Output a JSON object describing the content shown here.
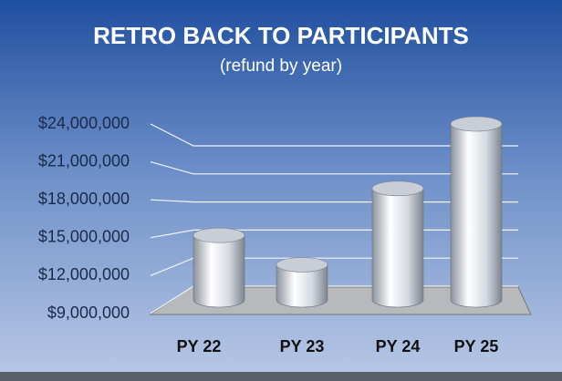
{
  "chart_data": {
    "type": "bar",
    "title": "RETRO BACK TO PARTICIPANTS",
    "subtitle": "(refund by year)",
    "categories": [
      "PY 22",
      "PY 23",
      "PY 24",
      "PY 25"
    ],
    "values": [
      14500000,
      12000000,
      18500000,
      24000000
    ],
    "color": "#e8ecf2",
    "ylim": [
      9000000,
      24000000
    ],
    "yticks": [
      {
        "value": 9000000,
        "label": "$9,000,000"
      },
      {
        "value": 12000000,
        "label": "$12,000,000"
      },
      {
        "value": 15000000,
        "label": "$15,000,000"
      },
      {
        "value": 18000000,
        "label": "$18,000,000"
      },
      {
        "value": 21000000,
        "label": "$21,000,000"
      },
      {
        "value": 24000000,
        "label": "$24,000,000"
      }
    ],
    "grid": true
  }
}
